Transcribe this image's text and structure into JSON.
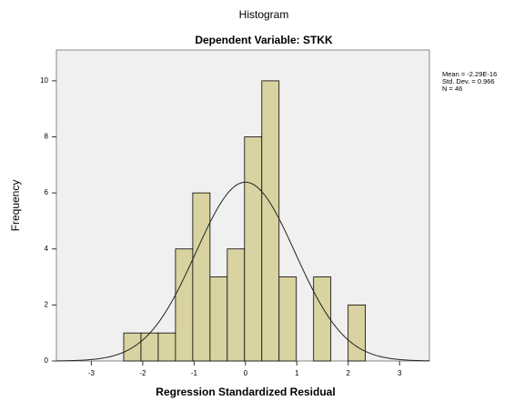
{
  "chart_data": {
    "type": "histogram",
    "title": "Histogram",
    "subtitle": "Dependent Variable: STKK",
    "x_label": "Regression Standardized Residual",
    "y_label": "Frequency",
    "bins": [
      -2.37,
      -2.034,
      -1.698,
      -1.362,
      -1.026,
      -0.69,
      -0.354,
      -0.018,
      0.318,
      0.654,
      0.99,
      1.326,
      1.662,
      1.998,
      2.334
    ],
    "counts": [
      1,
      1,
      1,
      4,
      6,
      3,
      4,
      8,
      10,
      3,
      0,
      3,
      0,
      2
    ],
    "color": "#d9d3a2",
    "xlim": [
      -3.68,
      3.58
    ],
    "xticks": [
      {
        "value": -3,
        "label": "-3"
      },
      {
        "value": -2,
        "label": "-2"
      },
      {
        "value": -1,
        "label": "-1"
      },
      0,
      1,
      2,
      3
    ],
    "ylim": [
      0,
      11.1
    ],
    "yticks": [
      0,
      2,
      4,
      6,
      8,
      10
    ],
    "annotations": [
      "Mean = -2.29E-16",
      "Std. Dev. = 0.966",
      "N = 46"
    ],
    "normal_curve": {
      "mean": -2.29e-16,
      "std_dev": 0.966,
      "n": 46
    }
  }
}
